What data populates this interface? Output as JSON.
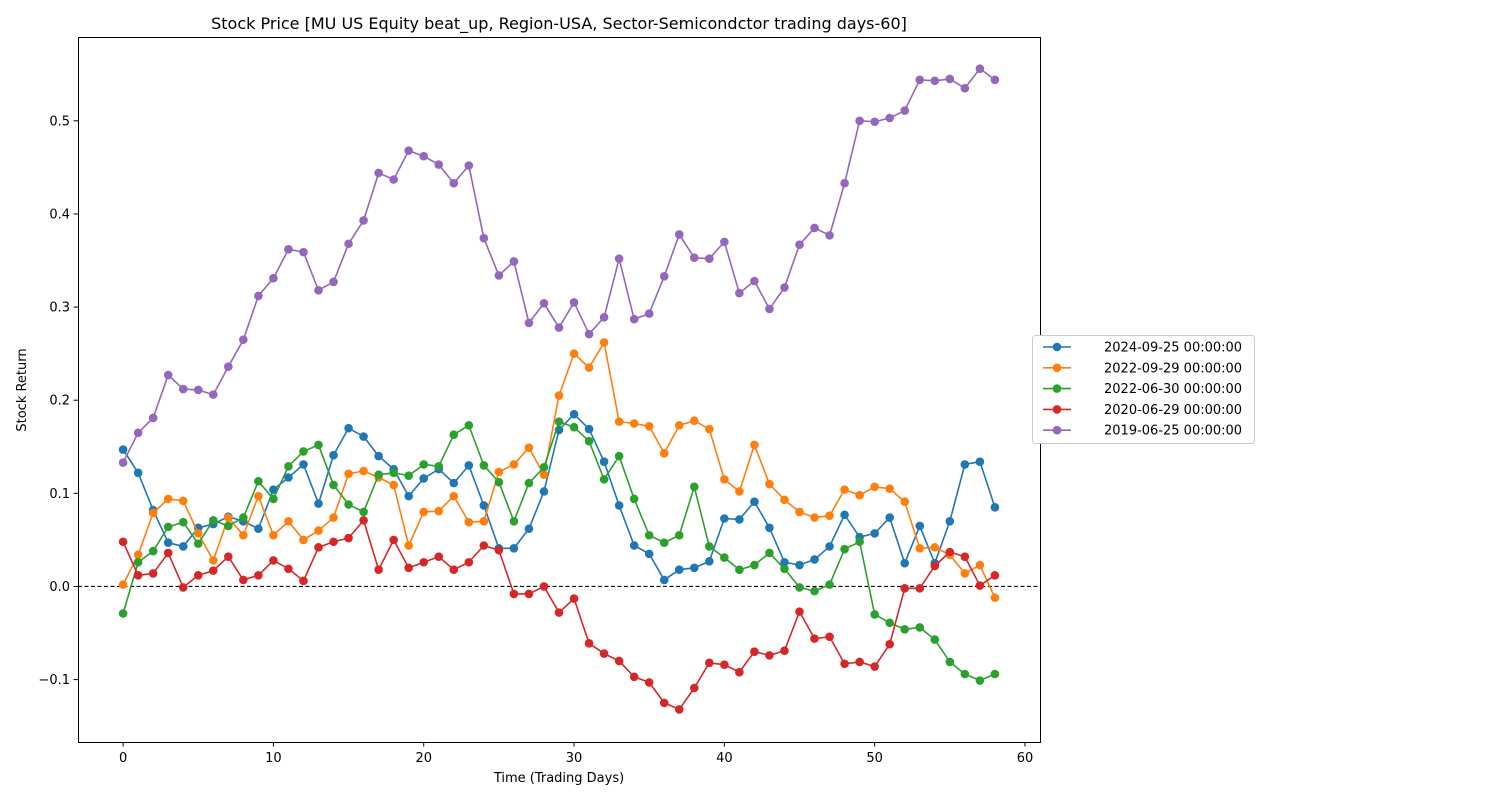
{
  "chart_data": {
    "type": "line",
    "title": "Stock Price [MU US Equity beat_up, Region-USA, Sector-Semicondctor trading days-60]",
    "xlabel": "Time (Trading Days)",
    "ylabel": "Stock Return",
    "xlim": [
      -3,
      61
    ],
    "ylim": [
      -0.167,
      0.59
    ],
    "xticks": [
      0,
      10,
      20,
      30,
      40,
      50,
      60
    ],
    "yticks": [
      -0.1,
      0.0,
      0.1,
      0.2,
      0.3,
      0.4,
      0.5
    ],
    "ytick_labels": [
      "−0.1",
      "0.0",
      "0.1",
      "0.2",
      "0.3",
      "0.4",
      "0.5"
    ],
    "reference_line": {
      "y": 0.0,
      "style": "dashed",
      "color": "#000000"
    },
    "grid": false,
    "legend_placement": "outside right, center",
    "x": [
      0,
      1,
      2,
      3,
      4,
      5,
      6,
      7,
      8,
      9,
      10,
      11,
      12,
      13,
      14,
      15,
      16,
      17,
      18,
      19,
      20,
      21,
      22,
      23,
      24,
      25,
      26,
      27,
      28,
      29,
      30,
      31,
      32,
      33,
      34,
      35,
      36,
      37,
      38,
      39,
      40,
      41,
      42,
      43,
      44,
      45,
      46,
      47,
      48,
      49,
      50,
      51,
      52,
      53,
      54,
      55,
      56,
      57,
      58
    ],
    "series": [
      {
        "name": "2024-09-25 00:00:00",
        "color": "#1f77b4",
        "values": [
          0.147,
          0.122,
          0.082,
          0.047,
          0.043,
          0.063,
          0.067,
          0.075,
          0.07,
          0.062,
          0.104,
          0.117,
          0.131,
          0.089,
          0.141,
          0.17,
          0.161,
          0.14,
          0.126,
          0.097,
          0.116,
          0.126,
          0.111,
          0.13,
          0.087,
          0.041,
          0.041,
          0.062,
          0.102,
          0.168,
          0.185,
          0.169,
          0.134,
          0.087,
          0.044,
          0.035,
          0.007,
          0.018,
          0.02,
          0.027,
          0.073,
          0.072,
          0.091,
          0.063,
          0.026,
          0.023,
          0.029,
          0.043,
          0.077,
          0.053,
          0.057,
          0.074,
          0.025,
          0.065,
          0.025,
          0.07,
          0.131,
          0.134,
          0.085
        ]
      },
      {
        "name": "2022-09-29 00:00:00",
        "color": "#ff7f0e",
        "values": [
          0.002,
          0.034,
          0.079,
          0.094,
          0.092,
          0.057,
          0.028,
          0.074,
          0.055,
          0.097,
          0.055,
          0.07,
          0.05,
          0.06,
          0.074,
          0.121,
          0.124,
          0.117,
          0.109,
          0.044,
          0.08,
          0.081,
          0.097,
          0.069,
          0.07,
          0.123,
          0.131,
          0.149,
          0.12,
          0.205,
          0.25,
          0.235,
          0.262,
          0.177,
          0.175,
          0.172,
          0.143,
          0.173,
          0.178,
          0.169,
          0.115,
          0.102,
          0.152,
          0.11,
          0.093,
          0.08,
          0.074,
          0.076,
          0.104,
          0.098,
          0.107,
          0.105,
          0.091,
          0.041,
          0.042,
          0.034,
          0.014,
          0.023,
          -0.012
        ]
      },
      {
        "name": "2022-06-30 00:00:00",
        "color": "#2ca02c",
        "values": [
          -0.029,
          0.026,
          0.038,
          0.064,
          0.069,
          0.046,
          0.071,
          0.065,
          0.074,
          0.113,
          0.094,
          0.129,
          0.145,
          0.152,
          0.109,
          0.088,
          0.08,
          0.12,
          0.122,
          0.119,
          0.131,
          0.129,
          0.163,
          0.173,
          0.13,
          0.112,
          0.07,
          0.111,
          0.128,
          0.177,
          0.171,
          0.156,
          0.115,
          0.14,
          0.094,
          0.055,
          0.047,
          0.055,
          0.107,
          0.043,
          0.031,
          0.018,
          0.023,
          0.036,
          0.019,
          -0.001,
          -0.005,
          0.002,
          0.04,
          0.048,
          -0.03,
          -0.039,
          -0.046,
          -0.044,
          -0.057,
          -0.081,
          -0.094,
          -0.101,
          -0.094
        ]
      },
      {
        "name": "2020-06-29 00:00:00",
        "color": "#d62728",
        "values": [
          0.048,
          0.012,
          0.014,
          0.036,
          -0.001,
          0.012,
          0.017,
          0.032,
          0.007,
          0.012,
          0.028,
          0.019,
          0.006,
          0.042,
          0.048,
          0.052,
          0.071,
          0.018,
          0.05,
          0.02,
          0.026,
          0.032,
          0.018,
          0.026,
          0.044,
          0.039,
          -0.008,
          -0.008,
          0.0,
          -0.028,
          -0.013,
          -0.061,
          -0.072,
          -0.08,
          -0.097,
          -0.103,
          -0.125,
          -0.132,
          -0.109,
          -0.082,
          -0.084,
          -0.092,
          -0.07,
          -0.074,
          -0.069,
          -0.027,
          -0.056,
          -0.054,
          -0.083,
          -0.081,
          -0.086,
          -0.062,
          -0.002,
          -0.002,
          0.022,
          0.037,
          0.032,
          0.001,
          0.012
        ]
      },
      {
        "name": "2019-06-25 00:00:00",
        "color": "#9467bd",
        "values": [
          0.133,
          0.165,
          0.181,
          0.227,
          0.212,
          0.211,
          0.206,
          0.236,
          0.265,
          0.312,
          0.331,
          0.362,
          0.359,
          0.318,
          0.327,
          0.368,
          0.393,
          0.444,
          0.437,
          0.468,
          0.462,
          0.453,
          0.433,
          0.452,
          0.374,
          0.334,
          0.349,
          0.283,
          0.304,
          0.278,
          0.305,
          0.271,
          0.289,
          0.352,
          0.287,
          0.293,
          0.333,
          0.378,
          0.353,
          0.352,
          0.37,
          0.315,
          0.328,
          0.298,
          0.321,
          0.367,
          0.385,
          0.377,
          0.433,
          0.5,
          0.499,
          0.503,
          0.511,
          0.544,
          0.543,
          0.545,
          0.535,
          0.556,
          0.544
        ]
      }
    ]
  }
}
